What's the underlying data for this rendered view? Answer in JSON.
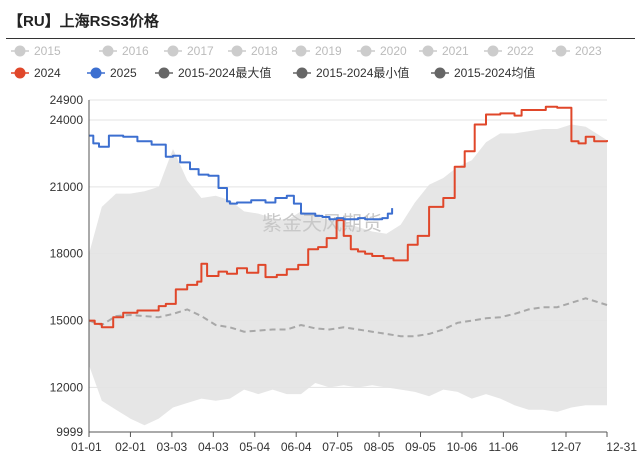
{
  "title": "【RU】上海RSS3价格",
  "watermark": "紫金天风期货",
  "legend_colors": {
    "inactive": "#cccccc",
    "s2024": "#e0472a",
    "s2025": "#3c6fd0",
    "stat": "#666666"
  },
  "chart_data": {
    "type": "line",
    "title": "【RU】上海RSS3价格",
    "xlabel": "",
    "ylabel": "",
    "x_ticks": [
      "01-01",
      "02-01",
      "03-03",
      "04-03",
      "05-04",
      "06-04",
      "07-05",
      "08-05",
      "09-05",
      "10-06",
      "11-06",
      "12-07",
      "12-31"
    ],
    "y_ticks": [
      9999,
      12000,
      15000,
      18000,
      21000,
      24000,
      24900
    ],
    "ylim": [
      9999,
      24900
    ],
    "legend_position": "top",
    "legend": [
      {
        "name": "2015",
        "active": false
      },
      {
        "name": "2016",
        "active": false
      },
      {
        "name": "2017",
        "active": false
      },
      {
        "name": "2018",
        "active": false
      },
      {
        "name": "2019",
        "active": false
      },
      {
        "name": "2020",
        "active": false
      },
      {
        "name": "2021",
        "active": false
      },
      {
        "name": "2022",
        "active": false
      },
      {
        "name": "2023",
        "active": false
      },
      {
        "name": "2024",
        "active": true,
        "color": "#e0472a"
      },
      {
        "name": "2025",
        "active": true,
        "color": "#3c6fd0"
      },
      {
        "name": "2015-2024最大值",
        "active": true,
        "color": "#666666"
      },
      {
        "name": "2015-2024最小值",
        "active": true,
        "color": "#666666"
      },
      {
        "name": "2015-2024均值",
        "active": true,
        "color": "#666666"
      }
    ],
    "series": [
      {
        "name": "2024",
        "x": [
          1,
          5,
          10,
          18,
          25,
          35,
          50,
          55,
          62,
          70,
          77,
          80,
          84,
          92,
          98,
          105,
          112,
          120,
          125,
          133,
          140,
          148,
          155,
          162,
          168,
          175,
          180,
          185,
          190,
          195,
          200,
          208,
          215,
          225,
          232,
          240,
          250,
          258,
          265,
          272,
          280,
          290,
          300,
          305,
          315,
          322,
          330,
          340,
          345,
          350,
          356,
          365
        ],
        "values": [
          15000,
          14850,
          14700,
          15150,
          15350,
          15450,
          15650,
          15750,
          16400,
          16600,
          16750,
          17550,
          17000,
          17200,
          17100,
          17350,
          17150,
          17500,
          16950,
          17050,
          17300,
          17500,
          18200,
          18300,
          18700,
          19500,
          18800,
          18200,
          18100,
          18000,
          17900,
          17800,
          17700,
          18400,
          18800,
          20100,
          20500,
          21900,
          22600,
          23800,
          24250,
          24300,
          24200,
          24450,
          24450,
          24600,
          24550,
          23050,
          22950,
          23250,
          23050,
          23100
        ]
      },
      {
        "name": "2025",
        "x": [
          1,
          4,
          8,
          15,
          25,
          35,
          45,
          55,
          60,
          65,
          72,
          78,
          85,
          92,
          98,
          100,
          105,
          115,
          125,
          132,
          140,
          145,
          150,
          155,
          160,
          165,
          170,
          175,
          180,
          185,
          190,
          195,
          200,
          203,
          207,
          211,
          214
        ],
        "values": [
          23300,
          22950,
          22800,
          23300,
          23250,
          23050,
          22900,
          22350,
          22400,
          22100,
          21800,
          21550,
          21500,
          20950,
          20350,
          20250,
          20300,
          20400,
          20300,
          20500,
          20600,
          20250,
          19800,
          19800,
          19700,
          19650,
          19550,
          19600,
          19550,
          19550,
          19600,
          19550,
          19550,
          19550,
          19600,
          19800,
          20050
        ]
      },
      {
        "name": "2015-2024最大值",
        "x": [
          1,
          10,
          20,
          30,
          40,
          50,
          60,
          70,
          80,
          90,
          100,
          110,
          120,
          130,
          140,
          150,
          160,
          170,
          180,
          190,
          200,
          210,
          220,
          230,
          240,
          250,
          260,
          270,
          280,
          290,
          300,
          310,
          320,
          330,
          340,
          350,
          365
        ],
        "values": [
          18000,
          20100,
          20700,
          20700,
          20800,
          21000,
          22700,
          21300,
          20500,
          20600,
          20400,
          19900,
          19800,
          19600,
          19500,
          19900,
          19700,
          19500,
          19400,
          19200,
          19000,
          18900,
          19300,
          20300,
          21100,
          21400,
          21900,
          22200,
          23000,
          23400,
          23400,
          23500,
          23600,
          23600,
          23800,
          23700,
          23100
        ]
      },
      {
        "name": "2015-2024最小值",
        "x": [
          1,
          10,
          20,
          30,
          40,
          50,
          60,
          70,
          80,
          90,
          100,
          110,
          120,
          130,
          140,
          150,
          160,
          170,
          180,
          190,
          200,
          210,
          220,
          230,
          240,
          250,
          260,
          270,
          280,
          290,
          300,
          310,
          320,
          330,
          340,
          350,
          365
        ],
        "values": [
          13000,
          11400,
          11000,
          10600,
          10300,
          10600,
          11100,
          11300,
          11500,
          11400,
          11500,
          11900,
          11700,
          11900,
          11700,
          11700,
          12200,
          12000,
          12100,
          12000,
          12100,
          12000,
          11900,
          11800,
          11600,
          11900,
          11800,
          11500,
          11700,
          11500,
          11200,
          11000,
          11000,
          10900,
          11100,
          11200,
          11200
        ]
      },
      {
        "name": "2015-2024均值",
        "x": [
          1,
          10,
          20,
          30,
          40,
          50,
          60,
          70,
          80,
          90,
          100,
          110,
          120,
          130,
          140,
          150,
          160,
          170,
          180,
          190,
          200,
          210,
          220,
          230,
          240,
          250,
          260,
          270,
          280,
          290,
          300,
          310,
          320,
          330,
          340,
          350,
          365
        ],
        "values": [
          15000,
          14800,
          15200,
          15250,
          15200,
          15150,
          15300,
          15500,
          15200,
          14800,
          14700,
          14500,
          14550,
          14600,
          14600,
          14800,
          14650,
          14600,
          14700,
          14600,
          14500,
          14400,
          14300,
          14300,
          14400,
          14600,
          14900,
          15000,
          15100,
          15150,
          15300,
          15500,
          15600,
          15600,
          15800,
          16000,
          15700
        ]
      }
    ]
  }
}
